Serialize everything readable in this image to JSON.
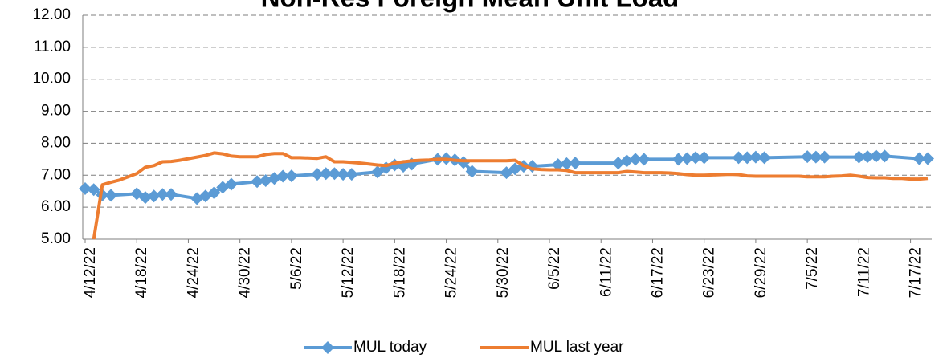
{
  "chart_data": {
    "type": "line",
    "title": "Non-Res Foreign Mean Unit Load",
    "xlim": [
      "4/12/22",
      "7/19/22"
    ],
    "xticks": [
      "4/12/22",
      "4/18/22",
      "4/24/22",
      "4/30/22",
      "5/6/22",
      "5/12/22",
      "5/18/22",
      "5/24/22",
      "5/30/22",
      "6/5/22",
      "6/11/22",
      "6/17/22",
      "6/23/22",
      "6/29/22",
      "7/5/22",
      "7/11/22",
      "7/17/22"
    ],
    "ylim": [
      5,
      12
    ],
    "yticks": [
      {
        "value": 5,
        "label": "5.00"
      },
      {
        "value": 6,
        "label": "6.00"
      },
      {
        "value": 7,
        "label": "7.00"
      },
      {
        "value": 8,
        "label": "8.00"
      },
      {
        "value": 9,
        "label": "9.00"
      },
      {
        "value": 10,
        "label": "10.00"
      },
      {
        "value": 11,
        "label": "11.00"
      },
      {
        "value": 12,
        "label": "12.00"
      }
    ],
    "grid": true,
    "legend": "bottom",
    "series": [
      {
        "name": "MUL today",
        "color": "#5b9bd5",
        "marker": "diamond",
        "x": [
          "4/12/22",
          "4/13/22",
          "4/14/22",
          "4/15/22",
          "4/18/22",
          "4/19/22",
          "4/20/22",
          "4/21/22",
          "4/22/22",
          "4/25/22",
          "4/26/22",
          "4/27/22",
          "4/28/22",
          "4/29/22",
          "5/2/22",
          "5/3/22",
          "5/4/22",
          "5/5/22",
          "5/6/22",
          "5/9/22",
          "5/10/22",
          "5/11/22",
          "5/12/22",
          "5/13/22",
          "5/16/22",
          "5/17/22",
          "5/18/22",
          "5/19/22",
          "5/20/22",
          "5/23/22",
          "5/24/22",
          "5/25/22",
          "5/26/22",
          "5/27/22",
          "5/31/22",
          "6/1/22",
          "6/2/22",
          "6/3/22",
          "6/6/22",
          "6/7/22",
          "6/8/22",
          "6/13/22",
          "6/14/22",
          "6/15/22",
          "6/16/22",
          "6/20/22",
          "6/21/22",
          "6/22/22",
          "6/23/22",
          "6/27/22",
          "6/28/22",
          "6/29/22",
          "6/30/22",
          "7/5/22",
          "7/6/22",
          "7/7/22",
          "7/11/22",
          "7/12/22",
          "7/13/22",
          "7/14/22",
          "7/18/22",
          "7/19/22"
        ],
        "values": [
          6.58,
          6.55,
          6.38,
          6.37,
          6.42,
          6.3,
          6.35,
          6.4,
          6.4,
          6.27,
          6.35,
          6.45,
          6.62,
          6.72,
          6.8,
          6.83,
          6.9,
          6.97,
          6.98,
          7.03,
          7.05,
          7.05,
          7.03,
          7.03,
          7.1,
          7.23,
          7.32,
          7.28,
          7.35,
          7.5,
          7.52,
          7.48,
          7.4,
          7.12,
          7.08,
          7.2,
          7.28,
          7.28,
          7.33,
          7.36,
          7.38,
          7.38,
          7.45,
          7.5,
          7.5,
          7.5,
          7.52,
          7.55,
          7.55,
          7.55,
          7.55,
          7.57,
          7.55,
          7.58,
          7.57,
          7.57,
          7.57,
          7.58,
          7.6,
          7.6,
          7.52,
          7.52
        ]
      },
      {
        "name": "MUL last year",
        "color": "#ed7d31",
        "marker": "none",
        "x": [
          "4/13/22",
          "4/14/22",
          "4/15/22",
          "4/16/22",
          "4/17/22",
          "4/18/22",
          "4/19/22",
          "4/20/22",
          "4/21/22",
          "4/22/22",
          "4/23/22",
          "4/24/22",
          "4/25/22",
          "4/26/22",
          "4/27/22",
          "4/28/22",
          "4/29/22",
          "4/30/22",
          "5/1/22",
          "5/2/22",
          "5/3/22",
          "5/4/22",
          "5/5/22",
          "5/6/22",
          "5/7/22",
          "5/8/22",
          "5/9/22",
          "5/10/22",
          "5/11/22",
          "5/12/22",
          "5/13/22",
          "5/14/22",
          "5/15/22",
          "5/16/22",
          "5/17/22",
          "5/18/22",
          "5/19/22",
          "5/20/22",
          "5/21/22",
          "5/22/22",
          "5/23/22",
          "5/24/22",
          "5/25/22",
          "5/26/22",
          "5/27/22",
          "5/28/22",
          "5/29/22",
          "5/30/22",
          "5/31/22",
          "6/1/22",
          "6/2/22",
          "6/3/22",
          "6/4/22",
          "6/5/22",
          "6/6/22",
          "6/7/22",
          "6/8/22",
          "6/9/22",
          "6/10/22",
          "6/11/22",
          "6/12/22",
          "6/13/22",
          "6/14/22",
          "6/15/22",
          "6/16/22",
          "6/17/22",
          "6/18/22",
          "6/19/22",
          "6/20/22",
          "6/21/22",
          "6/22/22",
          "6/23/22",
          "6/24/22",
          "6/25/22",
          "6/26/22",
          "6/27/22",
          "6/28/22",
          "6/29/22",
          "6/30/22",
          "7/1/22",
          "7/2/22",
          "7/3/22",
          "7/4/22",
          "7/5/22",
          "7/6/22",
          "7/7/22",
          "7/8/22",
          "7/9/22",
          "7/10/22",
          "7/11/22",
          "7/12/22",
          "7/13/22",
          "7/14/22",
          "7/15/22",
          "7/16/22",
          "7/17/22",
          "7/18/22",
          "7/19/22"
        ],
        "values": [
          5.0,
          6.7,
          6.78,
          6.85,
          6.95,
          7.05,
          7.25,
          7.3,
          7.42,
          7.43,
          7.47,
          7.52,
          7.57,
          7.62,
          7.7,
          7.67,
          7.6,
          7.58,
          7.58,
          7.58,
          7.65,
          7.68,
          7.68,
          7.55,
          7.55,
          7.54,
          7.53,
          7.58,
          7.42,
          7.42,
          7.4,
          7.38,
          7.35,
          7.32,
          7.3,
          7.38,
          7.42,
          7.45,
          7.47,
          7.48,
          7.5,
          7.5,
          7.47,
          7.45,
          7.45,
          7.45,
          7.45,
          7.45,
          7.45,
          7.47,
          7.3,
          7.2,
          7.18,
          7.17,
          7.17,
          7.15,
          7.08,
          7.08,
          7.08,
          7.08,
          7.08,
          7.08,
          7.12,
          7.1,
          7.08,
          7.08,
          7.08,
          7.07,
          7.05,
          7.02,
          7.0,
          7.0,
          7.01,
          7.02,
          7.03,
          7.02,
          6.98,
          6.97,
          6.97,
          6.97,
          6.97,
          6.97,
          6.97,
          6.95,
          6.95,
          6.95,
          6.97,
          6.98,
          7.0,
          6.97,
          6.93,
          6.92,
          6.92,
          6.9,
          6.9,
          6.88,
          6.88,
          6.9
        ]
      }
    ]
  }
}
